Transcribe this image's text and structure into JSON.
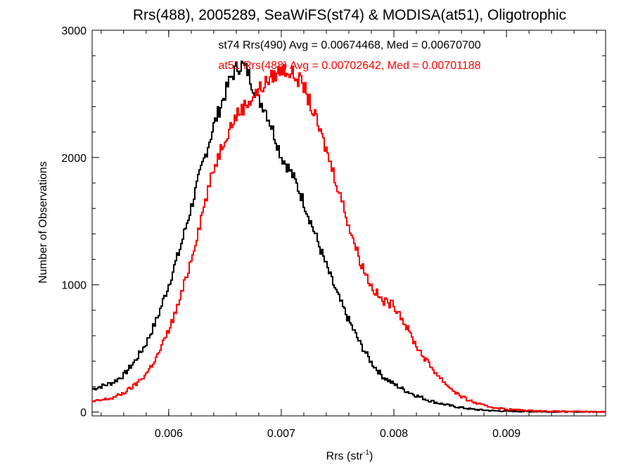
{
  "chart_data": {
    "type": "histogram",
    "title": "Rrs(488), 2005289, SeaWiFS(st74) & MODISA(at51), Oligotrophic",
    "xlabel": "Rrs (str",
    "xlabel_sup": "-1",
    "xlabel_close": ")",
    "ylabel": "Number of Observations",
    "xlim": [
      0.00532,
      0.00988
    ],
    "ylim": [
      -30,
      3000
    ],
    "x_ticks": [
      {
        "value": 0.006,
        "label": "0.006"
      },
      {
        "value": 0.007,
        "label": "0.007"
      },
      {
        "value": 0.008,
        "label": "0.008"
      },
      {
        "value": 0.009,
        "label": "0.009"
      }
    ],
    "y_ticks": [
      {
        "value": 0,
        "label": "0"
      },
      {
        "value": 1000,
        "label": "1000"
      },
      {
        "value": 2000,
        "label": "2000"
      },
      {
        "value": 3000,
        "label": "3000"
      }
    ],
    "series": [
      {
        "name": "st74 Rrs(490)",
        "color": "#000000",
        "annotation": "st74 Rrs(490) Avg = 0.00674468, Med = 0.00670700",
        "points": [
          [
            0.00532,
            180
          ],
          [
            0.0055,
            230
          ],
          [
            0.0056,
            290
          ],
          [
            0.0057,
            400
          ],
          [
            0.0058,
            540
          ],
          [
            0.0059,
            740
          ],
          [
            0.006,
            1000
          ],
          [
            0.0061,
            1280
          ],
          [
            0.0062,
            1610
          ],
          [
            0.0063,
            1940
          ],
          [
            0.0064,
            2250
          ],
          [
            0.0065,
            2500
          ],
          [
            0.00655,
            2620
          ],
          [
            0.0066,
            2700
          ],
          [
            0.00665,
            2730
          ],
          [
            0.0067,
            2680
          ],
          [
            0.00675,
            2560
          ],
          [
            0.0068,
            2450
          ],
          [
            0.00685,
            2400
          ],
          [
            0.0069,
            2280
          ],
          [
            0.00695,
            2150
          ],
          [
            0.007,
            2010
          ],
          [
            0.00705,
            1940
          ],
          [
            0.0071,
            1860
          ],
          [
            0.00715,
            1760
          ],
          [
            0.0072,
            1650
          ],
          [
            0.0073,
            1400
          ],
          [
            0.0074,
            1150
          ],
          [
            0.0075,
            920
          ],
          [
            0.0076,
            720
          ],
          [
            0.0077,
            540
          ],
          [
            0.0078,
            390
          ],
          [
            0.0079,
            280
          ],
          [
            0.008,
            220
          ],
          [
            0.0081,
            170
          ],
          [
            0.0082,
            130
          ],
          [
            0.0083,
            95
          ],
          [
            0.0084,
            70
          ],
          [
            0.0085,
            50
          ],
          [
            0.0086,
            35
          ],
          [
            0.0087,
            22
          ],
          [
            0.0088,
            15
          ],
          [
            0.0089,
            10
          ],
          [
            0.009,
            7
          ],
          [
            0.0092,
            4
          ],
          [
            0.0094,
            2
          ],
          [
            0.00988,
            1
          ]
        ]
      },
      {
        "name": "at51 Rrs(488)",
        "color": "#ff0000",
        "annotation": "at51 Rrs(488) Avg = 0.00702642, Med = 0.00701188",
        "points": [
          [
            0.00532,
            80
          ],
          [
            0.0055,
            110
          ],
          [
            0.0056,
            150
          ],
          [
            0.0057,
            210
          ],
          [
            0.0058,
            300
          ],
          [
            0.0059,
            440
          ],
          [
            0.006,
            640
          ],
          [
            0.0061,
            880
          ],
          [
            0.0062,
            1200
          ],
          [
            0.0063,
            1570
          ],
          [
            0.0064,
            1910
          ],
          [
            0.0065,
            2160
          ],
          [
            0.0066,
            2330
          ],
          [
            0.0067,
            2430
          ],
          [
            0.0068,
            2530
          ],
          [
            0.0069,
            2620
          ],
          [
            0.007,
            2690
          ],
          [
            0.00705,
            2690
          ],
          [
            0.0071,
            2650
          ],
          [
            0.00715,
            2620
          ],
          [
            0.0072,
            2560
          ],
          [
            0.00725,
            2440
          ],
          [
            0.0073,
            2320
          ],
          [
            0.0074,
            2060
          ],
          [
            0.0075,
            1780
          ],
          [
            0.0076,
            1470
          ],
          [
            0.0077,
            1190
          ],
          [
            0.0078,
            990
          ],
          [
            0.0079,
            870
          ],
          [
            0.00795,
            860
          ],
          [
            0.008,
            840
          ],
          [
            0.00805,
            780
          ],
          [
            0.0081,
            690
          ],
          [
            0.0082,
            520
          ],
          [
            0.0083,
            390
          ],
          [
            0.0084,
            280
          ],
          [
            0.0085,
            190
          ],
          [
            0.0086,
            120
          ],
          [
            0.0087,
            80
          ],
          [
            0.0088,
            50
          ],
          [
            0.0089,
            35
          ],
          [
            0.009,
            22
          ],
          [
            0.0092,
            12
          ],
          [
            0.0094,
            6
          ],
          [
            0.00988,
            2
          ]
        ]
      }
    ]
  }
}
